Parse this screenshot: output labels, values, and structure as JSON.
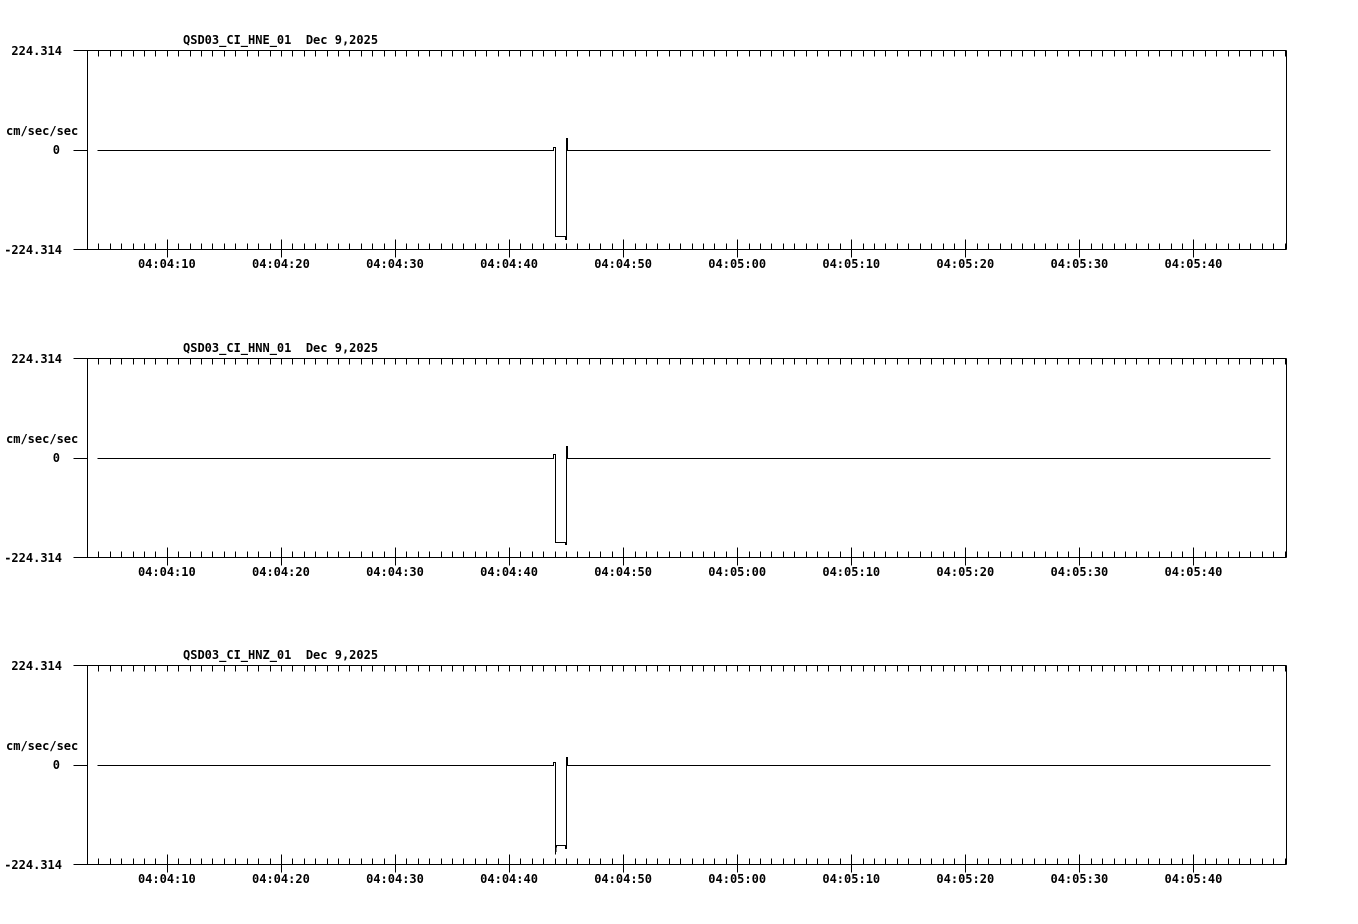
{
  "page": {
    "background_color": "#ffffff",
    "line_color": "#000000"
  },
  "axes": {
    "t_start_seconds": 3,
    "t_end_seconds": 108.2,
    "time_reference": "04:04:00",
    "minor_tick_step_s": 1,
    "major_tick_step_s": 10,
    "x_labels": [
      {
        "t": 10,
        "text": "04:04:10"
      },
      {
        "t": 20,
        "text": "04:04:20"
      },
      {
        "t": 30,
        "text": "04:04:30"
      },
      {
        "t": 40,
        "text": "04:04:40"
      },
      {
        "t": 50,
        "text": "04:04:50"
      },
      {
        "t": 60,
        "text": "04:05:00"
      },
      {
        "t": 70,
        "text": "04:05:10"
      },
      {
        "t": 80,
        "text": "04:05:20"
      },
      {
        "t": 90,
        "text": "04:05:30"
      },
      {
        "t": 100,
        "text": "04:05:40"
      }
    ]
  },
  "charts": [
    {
      "title": "QSD03_CI_HNE_01  Dec 9,2025",
      "y_max": "224.314",
      "y_zero": "0",
      "y_min": "-224.314",
      "unit": "cm/sec/sec"
    },
    {
      "title": "QSD03_CI_HNN_01  Dec 9,2025",
      "y_max": "224.314",
      "y_zero": "0",
      "y_min": "-224.314",
      "unit": "cm/sec/sec"
    },
    {
      "title": "QSD03_CI_HNZ_01  Dec 9,2025",
      "y_max": "224.314",
      "y_zero": "0",
      "y_min": "-224.314",
      "unit": "cm/sec/sec"
    }
  ],
  "chart_data": [
    {
      "type": "line",
      "title": "QSD03_CI_HNE_01  Dec 9,2025",
      "station_channel": "QSD03_CI_HNE_01",
      "date": "Dec 9,2025",
      "ylabel": "cm/sec/sec",
      "ylim": [
        -224.314,
        224.314
      ],
      "y_tick_labels": [
        "224.314",
        "0",
        "-224.314"
      ],
      "x_window": [
        "04:04:03",
        "04:05:48"
      ],
      "x_range_seconds": [
        3,
        108.2
      ],
      "x_tick_labels": [
        "04:04:10",
        "04:04:20",
        "04:04:30",
        "04:04:40",
        "04:04:50",
        "04:05:00",
        "04:05:10",
        "04:05:20",
        "04:05:30",
        "04:05:40"
      ],
      "points_seconds_value": [
        [
          3.9,
          0
        ],
        [
          43.88,
          0
        ],
        [
          43.88,
          7
        ],
        [
          43.99,
          7
        ],
        [
          43.99,
          -194
        ],
        [
          44.93,
          -194
        ],
        [
          44.93,
          -200
        ],
        [
          45.03,
          -200
        ],
        [
          45.03,
          27
        ],
        [
          45.12,
          27
        ],
        [
          45.12,
          0
        ],
        [
          106.7,
          0
        ]
      ]
    },
    {
      "type": "line",
      "title": "QSD03_CI_HNN_01  Dec 9,2025",
      "station_channel": "QSD03_CI_HNN_01",
      "date": "Dec 9,2025",
      "ylabel": "cm/sec/sec",
      "ylim": [
        -224.314,
        224.314
      ],
      "y_tick_labels": [
        "224.314",
        "0",
        "-224.314"
      ],
      "x_window": [
        "04:04:03",
        "04:05:48"
      ],
      "x_range_seconds": [
        3,
        108.2
      ],
      "x_tick_labels": [
        "04:04:10",
        "04:04:20",
        "04:04:30",
        "04:04:40",
        "04:04:50",
        "04:05:00",
        "04:05:10",
        "04:05:20",
        "04:05:30",
        "04:05:40"
      ],
      "points_seconds_value": [
        [
          3.9,
          0
        ],
        [
          43.88,
          0
        ],
        [
          43.88,
          9
        ],
        [
          43.99,
          9
        ],
        [
          43.99,
          -188
        ],
        [
          44.93,
          -188
        ],
        [
          44.93,
          -194
        ],
        [
          45.03,
          -194
        ],
        [
          45.03,
          27
        ],
        [
          45.12,
          27
        ],
        [
          45.12,
          0
        ],
        [
          106.7,
          0
        ]
      ]
    },
    {
      "type": "line",
      "title": "QSD03_CI_HNZ_01  Dec 9,2025",
      "station_channel": "QSD03_CI_HNZ_01",
      "date": "Dec 9,2025",
      "ylabel": "cm/sec/sec",
      "ylim": [
        -224.314,
        224.314
      ],
      "y_tick_labels": [
        "224.314",
        "0",
        "-224.314"
      ],
      "x_window": [
        "04:04:03",
        "04:05:48"
      ],
      "x_range_seconds": [
        3,
        108.2
      ],
      "x_tick_labels": [
        "04:04:10",
        "04:04:20",
        "04:04:30",
        "04:04:40",
        "04:04:50",
        "04:05:00",
        "04:05:10",
        "04:05:20",
        "04:05:30",
        "04:05:40"
      ],
      "points_seconds_value": [
        [
          3.9,
          0
        ],
        [
          43.88,
          0
        ],
        [
          43.88,
          7
        ],
        [
          43.99,
          7
        ],
        [
          43.99,
          -179
        ],
        [
          44.03,
          -200
        ],
        [
          44.08,
          -179
        ],
        [
          44.93,
          -179
        ],
        [
          44.93,
          -187
        ],
        [
          45.03,
          -187
        ],
        [
          45.03,
          18
        ],
        [
          45.12,
          18
        ],
        [
          45.12,
          0
        ],
        [
          106.7,
          0
        ]
      ]
    }
  ]
}
